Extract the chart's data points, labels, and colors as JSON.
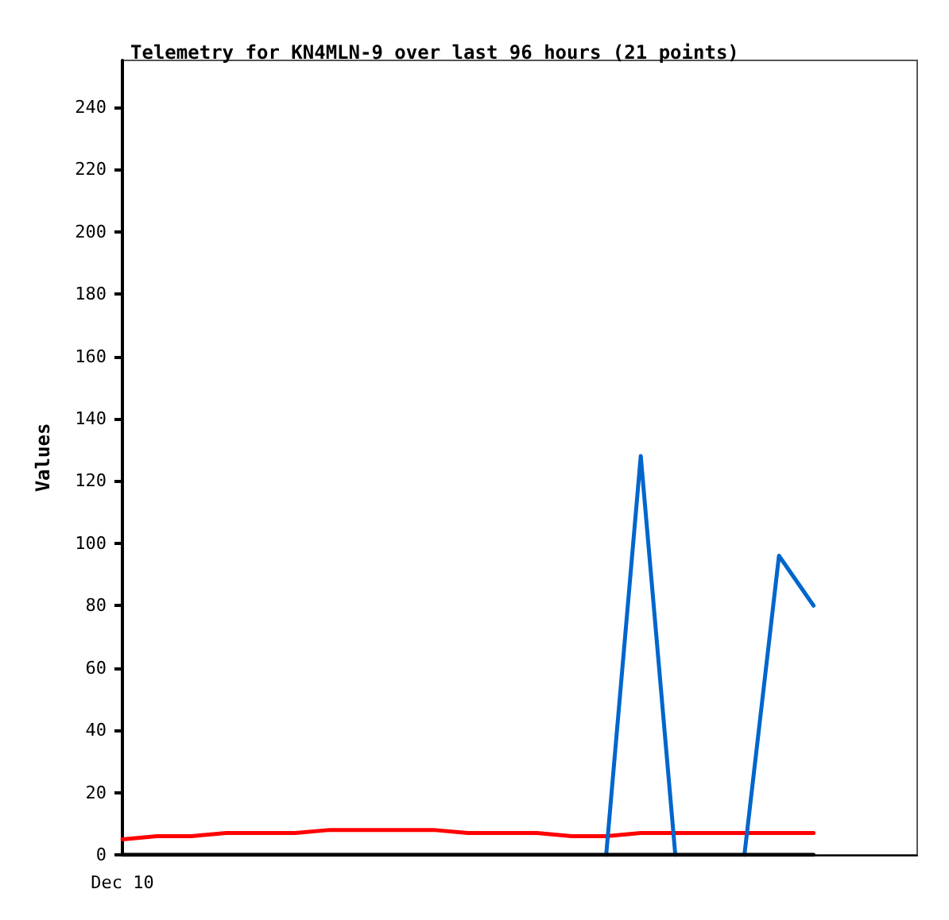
{
  "chart_data": {
    "type": "line",
    "title": "Telemetry for KN4MLN-9 over last 96 hours (21 points)",
    "ylabel": "Values",
    "categories": [
      "Dec 10",
      null,
      null,
      null,
      null,
      null,
      null,
      null,
      null,
      null,
      null,
      null,
      null,
      null,
      null,
      null,
      null,
      null,
      null,
      null,
      null,
      null,
      null,
      null
    ],
    "series": [
      {
        "color": "#ff0000",
        "values": [
          5,
          6,
          6,
          7,
          7,
          7,
          8,
          8,
          8,
          8,
          7,
          7,
          7,
          6,
          6,
          7,
          7,
          7,
          7,
          7,
          7,
          null,
          null,
          null
        ]
      },
      {
        "color": "#0066cc",
        "values": [
          null,
          null,
          null,
          null,
          null,
          null,
          null,
          null,
          null,
          null,
          null,
          null,
          null,
          null,
          0,
          128,
          0,
          null,
          0,
          96,
          80,
          null,
          null,
          null
        ]
      },
      {
        "color": "#000000",
        "values": [
          0,
          0,
          0,
          0,
          0,
          0,
          0,
          0,
          0,
          0,
          0,
          0,
          0,
          0,
          0,
          0,
          0,
          0,
          0,
          0,
          0,
          null,
          null,
          null
        ]
      }
    ],
    "ylim": [
      0,
      255
    ],
    "yticks": [
      0,
      20,
      40,
      60,
      80,
      100,
      120,
      140,
      160,
      180,
      200,
      220,
      240
    ],
    "marker": "none",
    "line_style": "solid"
  }
}
